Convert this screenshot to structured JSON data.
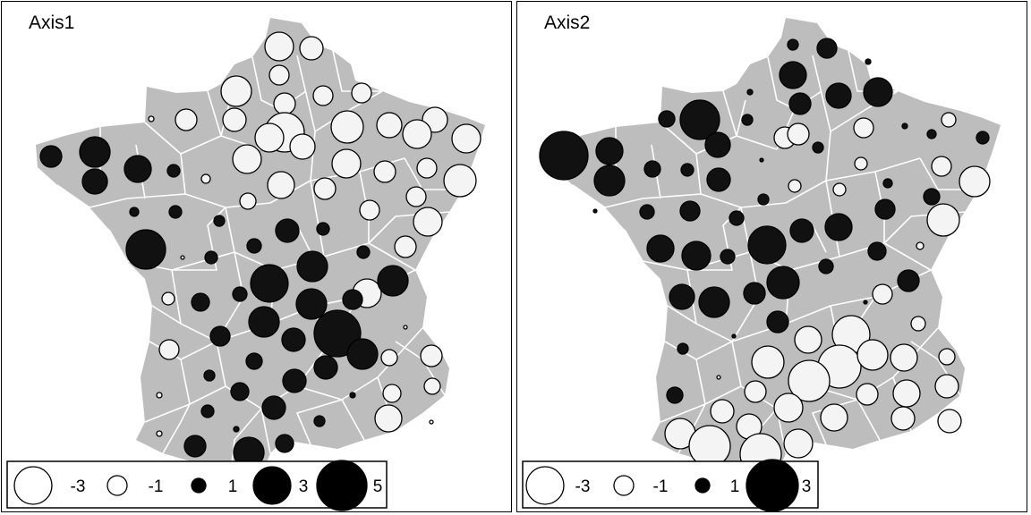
{
  "colors": {
    "land": "#bdbdbd",
    "borders": "#ffffff",
    "negative_fill": "#f4f4f4",
    "positive_fill": "#111111",
    "stroke": "#000000"
  },
  "panels": [
    {
      "title": "Axis1",
      "legend": [
        {
          "value": -3,
          "label": "-3"
        },
        {
          "value": -1,
          "label": "-1"
        },
        {
          "value": 1,
          "label": "1"
        },
        {
          "value": 3,
          "label": "3"
        },
        {
          "value": 5,
          "label": "5"
        }
      ]
    },
    {
      "title": "Axis2",
      "legend": [
        {
          "value": -3,
          "label": "-3"
        },
        {
          "value": -1,
          "label": "-1"
        },
        {
          "value": 1,
          "label": "1"
        },
        {
          "value": 3,
          "label": "3"
        }
      ]
    }
  ]
}
